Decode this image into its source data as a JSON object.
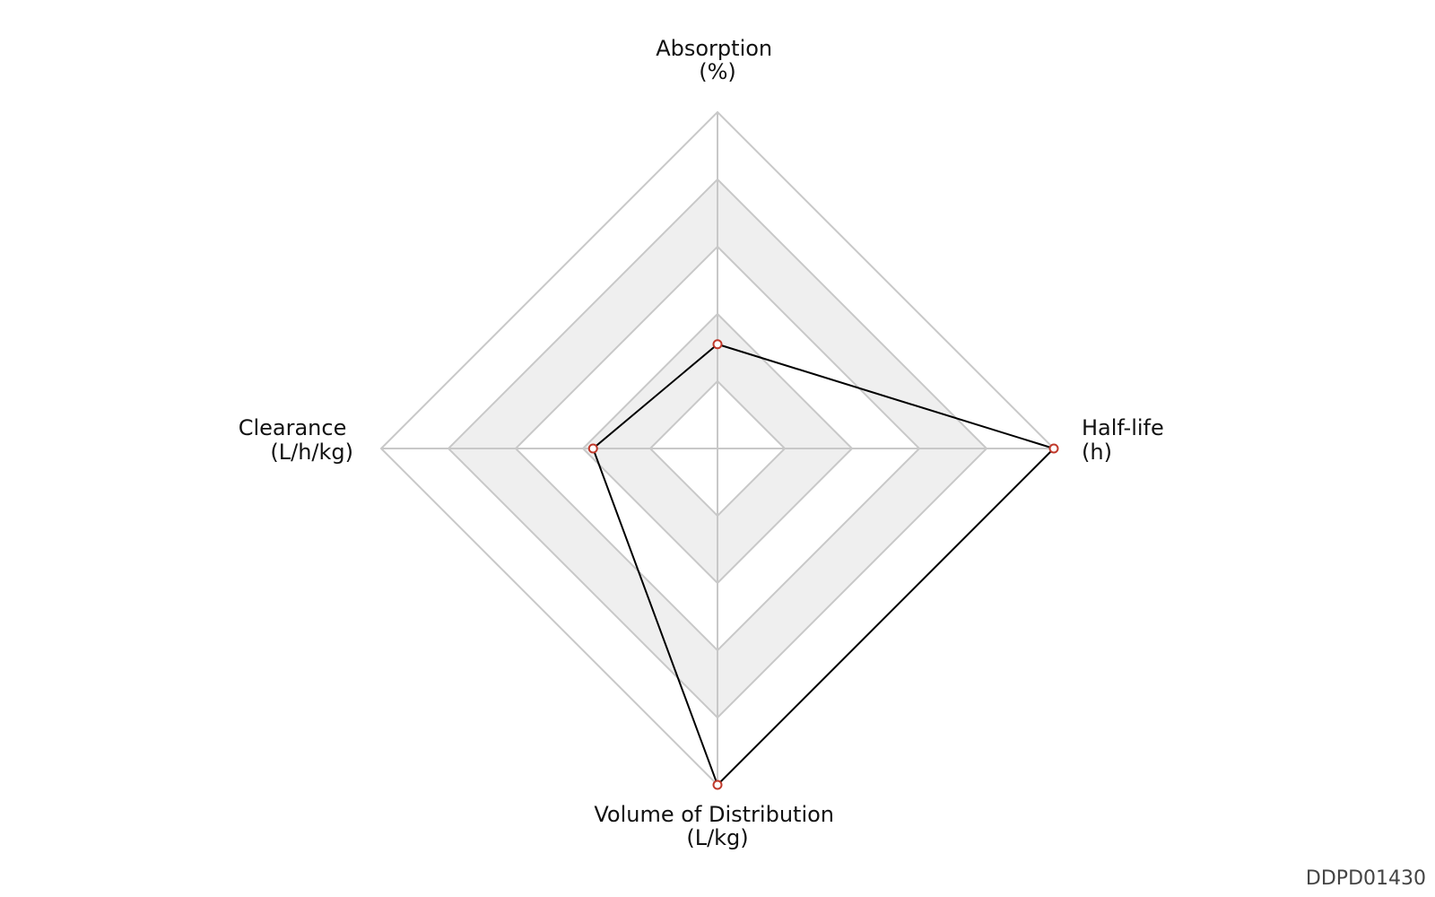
{
  "chart_data": {
    "type": "radar",
    "axes": [
      {
        "name": "Absorption",
        "unit": "(%)",
        "value": 0.31
      },
      {
        "name": "Half-life",
        "unit": "(h)",
        "value": 1.0
      },
      {
        "name": "Volume of Distribution",
        "unit": "(L/kg)",
        "value": 1.0
      },
      {
        "name": "Clearance",
        "unit": "(L/h/kg)",
        "value": 0.37
      }
    ],
    "range": [
      0,
      1
    ],
    "rings": 5,
    "grid": true,
    "colors": {
      "line": "#000000",
      "marker": "#c0392b",
      "grid": "#c8c8c8",
      "band": "#efefef"
    }
  },
  "footer": {
    "id": "DDPD01430"
  }
}
